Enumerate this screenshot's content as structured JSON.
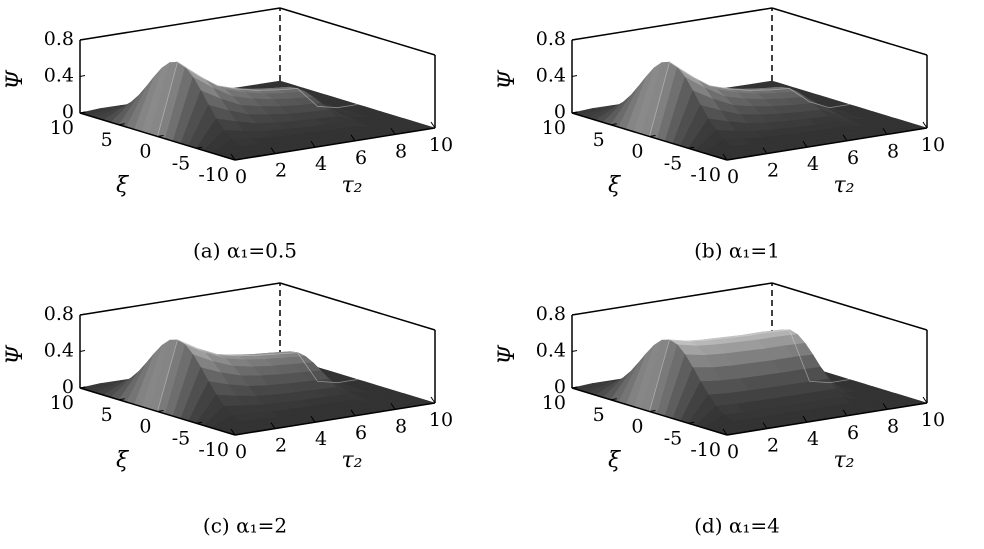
{
  "chart_data": [
    {
      "type": "surface",
      "caption": "(a) α₁=0.5",
      "zlabel": "Ψ",
      "xlabel": "ξ",
      "ylabel": "τ₂",
      "xlim": [
        -10,
        10
      ],
      "xticks": [
        10,
        5,
        0,
        -5,
        -10
      ],
      "ylim": [
        0,
        10
      ],
      "yticks": [
        0,
        2,
        4,
        6,
        8,
        10
      ],
      "zlim": [
        0,
        0.8
      ],
      "zticks": [
        0,
        0.4,
        0.8
      ],
      "x": [
        0,
        1,
        2,
        3,
        4,
        5,
        6,
        7,
        8,
        9,
        10
      ],
      "values": [
        0,
        0.78,
        0.6,
        0.45,
        0.38,
        0.33,
        0.3,
        0.28,
        0.05,
        0,
        0
      ]
    },
    {
      "type": "surface",
      "caption": "(b) α₁=1",
      "zlabel": "Ψ",
      "xlabel": "ξ",
      "ylabel": "τ₂",
      "xlim": [
        -10,
        10
      ],
      "xticks": [
        10,
        5,
        0,
        -5,
        -10
      ],
      "ylim": [
        0,
        10
      ],
      "yticks": [
        0,
        2,
        4,
        6,
        8,
        10
      ],
      "zlim": [
        0,
        0.8
      ],
      "zticks": [
        0,
        0.4,
        0.8
      ],
      "x": [
        0,
        1,
        2,
        3,
        4,
        5,
        6,
        7,
        8,
        9,
        10
      ],
      "values": [
        0,
        0.78,
        0.6,
        0.45,
        0.38,
        0.33,
        0.3,
        0.28,
        0.1,
        0,
        0
      ]
    },
    {
      "type": "surface",
      "caption": "(c) α₁=2",
      "zlabel": "Ψ",
      "xlabel": "ξ",
      "ylabel": "τ₂",
      "xlim": [
        -10,
        10
      ],
      "xticks": [
        10,
        5,
        0,
        -5,
        -10
      ],
      "ylim": [
        0,
        10
      ],
      "yticks": [
        0,
        2,
        4,
        6,
        8,
        10
      ],
      "zlim": [
        0,
        0.8
      ],
      "zticks": [
        0,
        0.4,
        0.8
      ],
      "x": [
        0,
        1,
        2,
        3,
        4,
        5,
        6,
        7,
        8,
        9,
        10
      ],
      "values": [
        0,
        0.75,
        0.62,
        0.52,
        0.47,
        0.44,
        0.42,
        0.4,
        0.05,
        0,
        0
      ]
    },
    {
      "type": "surface",
      "caption": "(d) α₁=4",
      "zlabel": "Ψ",
      "xlabel": "ξ",
      "ylabel": "τ₂",
      "xlim": [
        -10,
        10
      ],
      "xticks": [
        10,
        5,
        0,
        -5,
        -10
      ],
      "ylim": [
        0,
        10
      ],
      "yticks": [
        0,
        2,
        4,
        6,
        8,
        10
      ],
      "zlim": [
        0,
        0.8
      ],
      "zticks": [
        0,
        0.4,
        0.8
      ],
      "x": [
        0,
        1,
        2,
        3,
        4,
        5,
        6,
        7,
        8,
        9,
        10
      ],
      "values": [
        0,
        0.75,
        0.7,
        0.68,
        0.67,
        0.66,
        0.66,
        0.65,
        0.05,
        0,
        0
      ]
    }
  ]
}
